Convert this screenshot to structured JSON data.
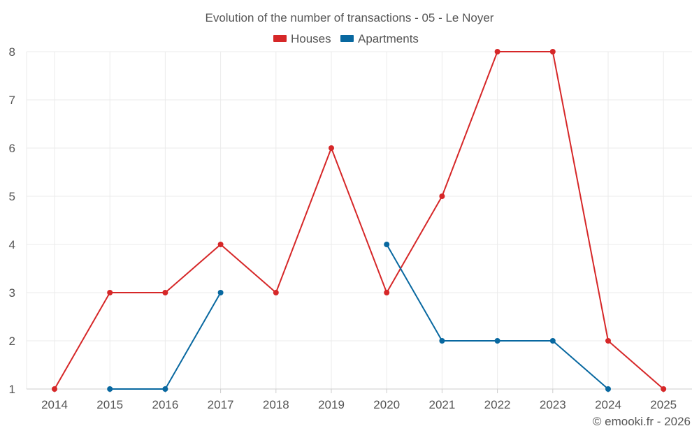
{
  "chart_data": {
    "type": "line",
    "title": "Evolution of the number of transactions - 05 - Le Noyer",
    "xlabel": "",
    "ylabel": "",
    "categories": [
      "2014",
      "2015",
      "2016",
      "2017",
      "2018",
      "2019",
      "2020",
      "2021",
      "2022",
      "2023",
      "2024",
      "2025"
    ],
    "ylim": [
      1,
      8
    ],
    "yticks": [
      1,
      2,
      3,
      4,
      5,
      6,
      7,
      8
    ],
    "grid": true,
    "legend_position": "top-center",
    "series": [
      {
        "name": "Houses",
        "color": "#d62728",
        "values": [
          1,
          3,
          3,
          4,
          3,
          6,
          3,
          5,
          8,
          8,
          2,
          1
        ]
      },
      {
        "name": "Apartments",
        "color": "#0868a0",
        "values": [
          null,
          1,
          1,
          3,
          null,
          null,
          4,
          2,
          2,
          2,
          1,
          null
        ]
      }
    ],
    "credit": "© emooki.fr - 2026"
  },
  "colors": {
    "title_text": "#555555",
    "axis_text": "#555555",
    "grid": "#ebebeb"
  }
}
